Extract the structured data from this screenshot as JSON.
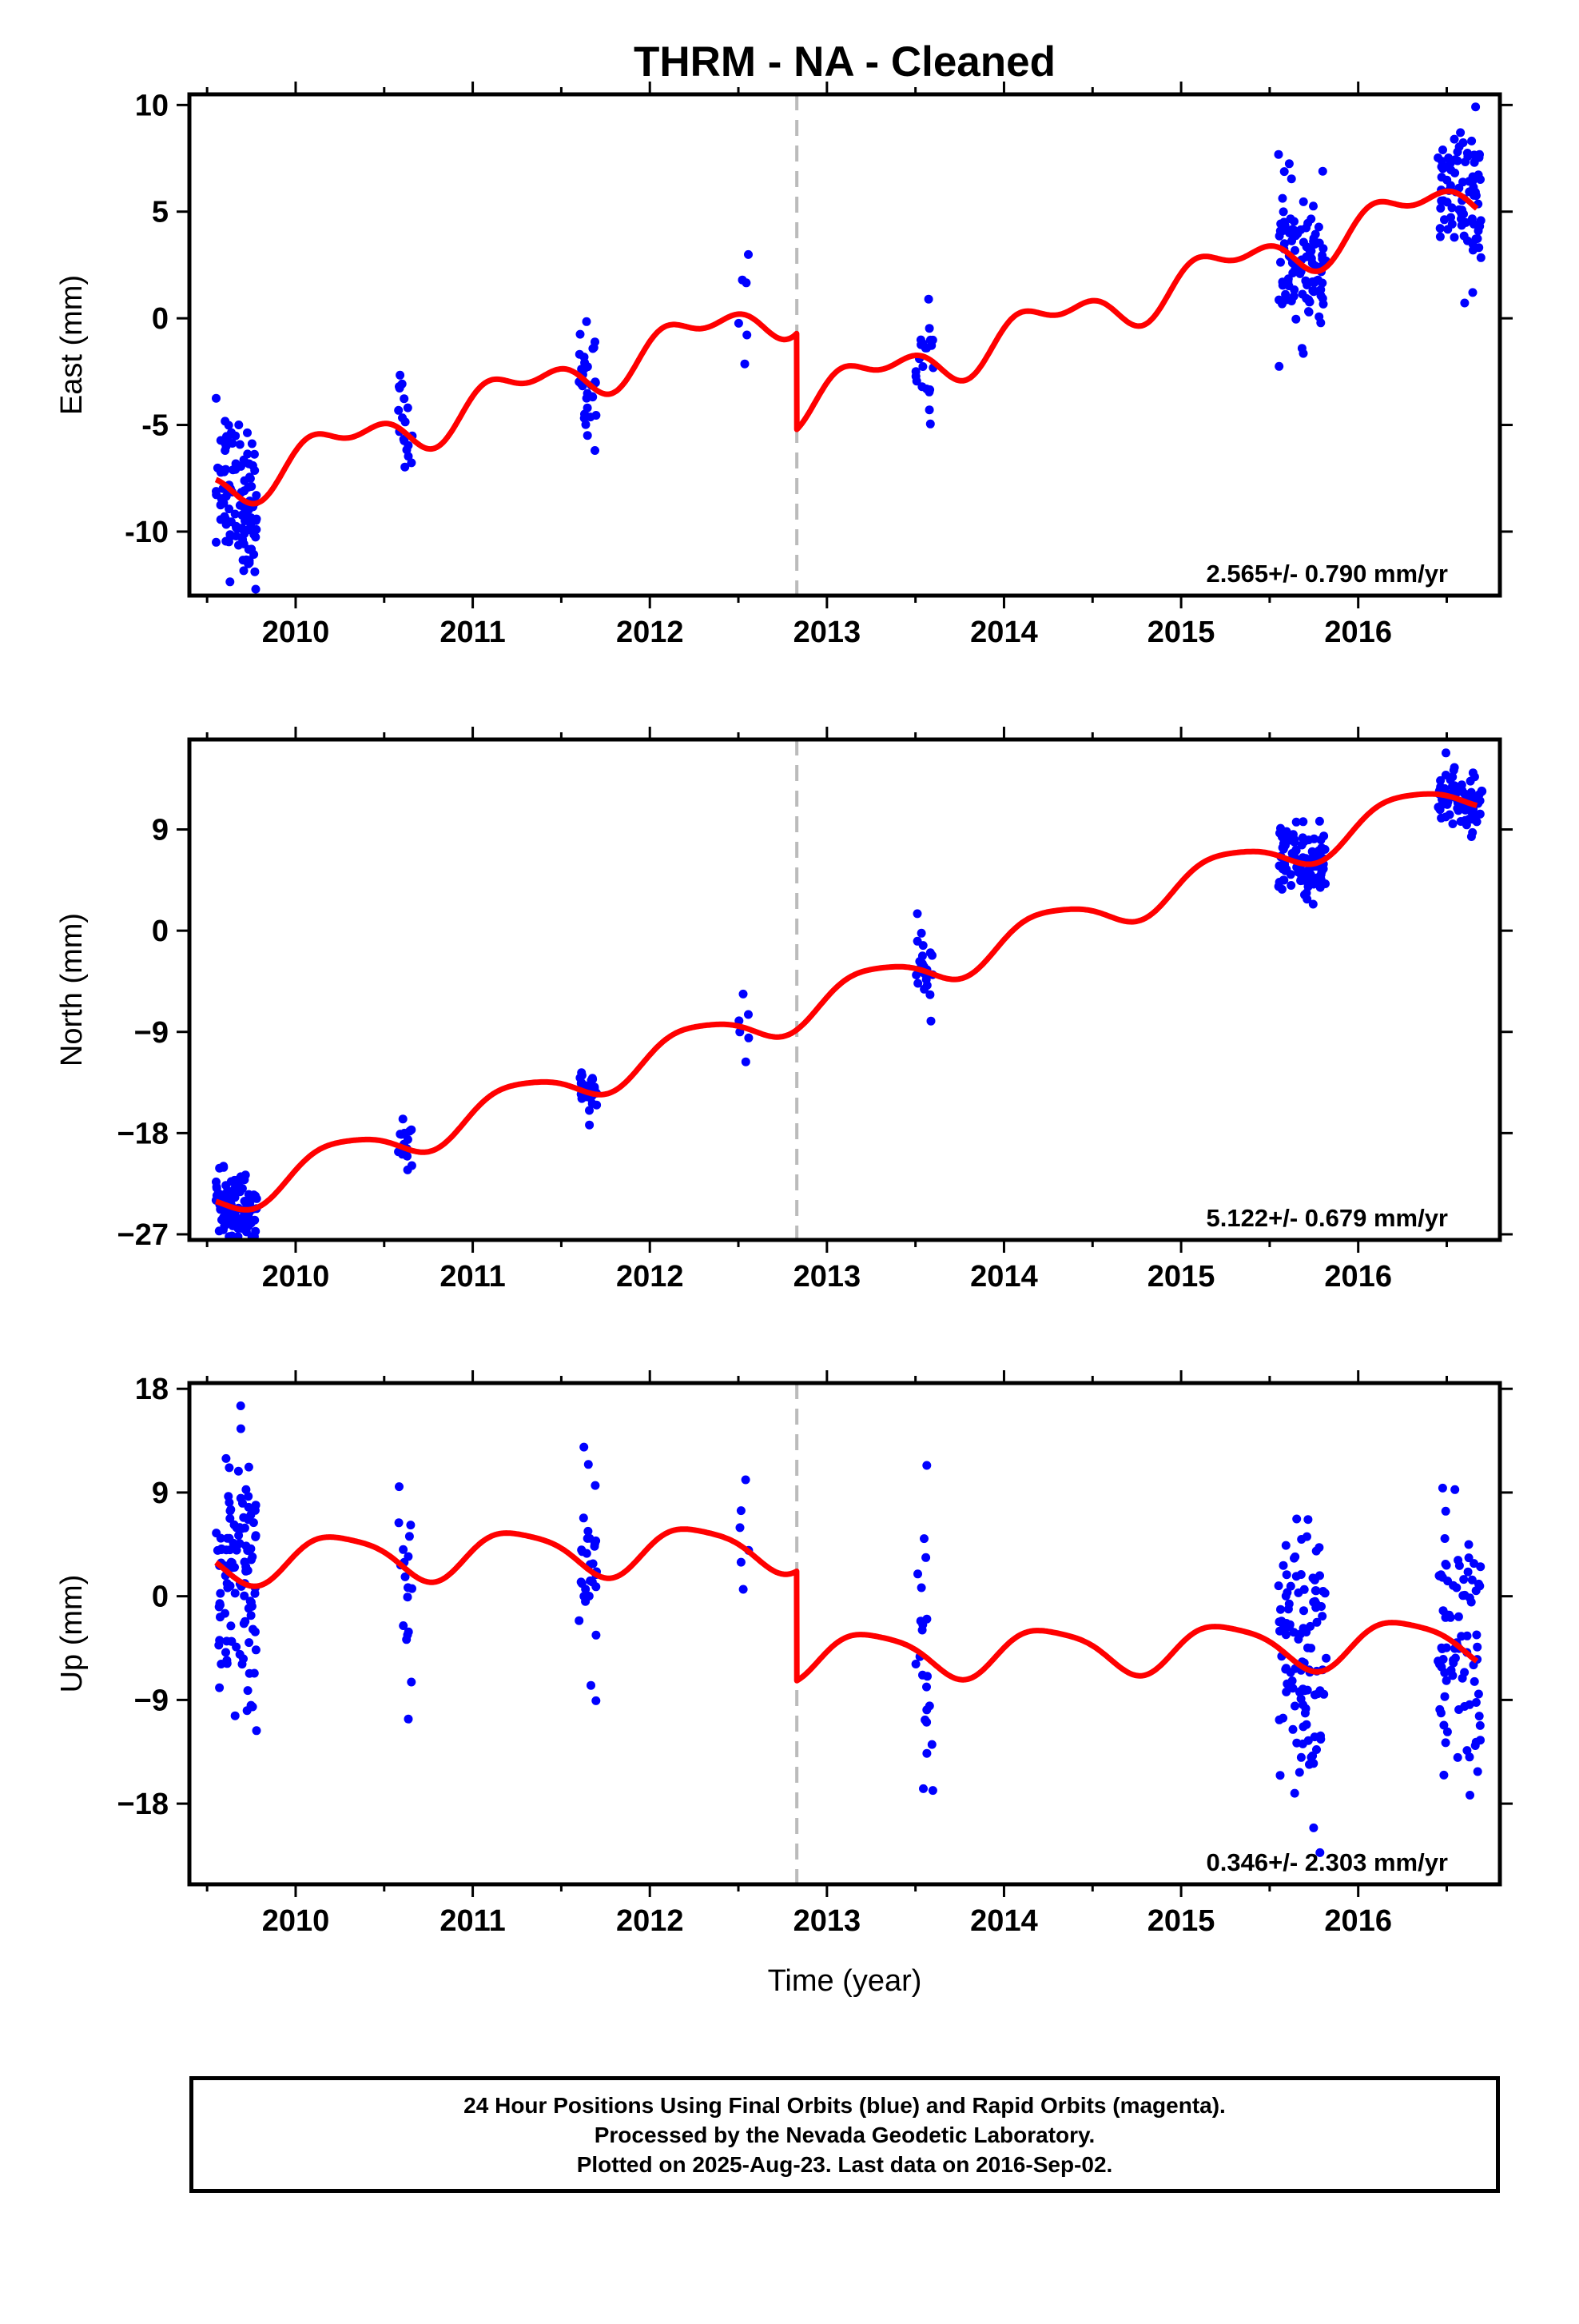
{
  "title": "THRM  - NA - Cleaned",
  "xlabel": "Time (year)",
  "footer": {
    "line1": "24 Hour Positions Using Final Orbits (blue) and Rapid Orbits (magenta).",
    "line2": "Processed by the Nevada Geodetic Laboratory.",
    "line3": "Plotted on 2025-Aug-23. Last data on 2016-Sep-02."
  },
  "colors": {
    "final_orbits": "#0000ff",
    "model_fit": "#ff0000",
    "equipment_change": "#bbbbbb"
  },
  "chart_data": [
    {
      "type": "scatter",
      "component": "east",
      "ylabel": "East (mm)",
      "ylim": [
        -13,
        10.5
      ],
      "xlim": [
        2009.4,
        2016.8
      ],
      "yticks": [
        -10,
        -5,
        0,
        5,
        10
      ],
      "xticks": [
        2010,
        2011,
        2012,
        2013,
        2014,
        2015,
        2016
      ],
      "xtick_labels": [
        "2010",
        "2011",
        "2012",
        "2013",
        "2014",
        "2015",
        "2016"
      ],
      "rate_label": "2.565+/- 0.790 mm/yr",
      "vline_x": 2012.83,
      "model": {
        "rate": 2.565,
        "intercept_at_2012": -1.55,
        "amplitude_annual": 0.9,
        "amplitude_semiannual": 0.55,
        "offset_after_break": -4.5
      },
      "series": [
        {
          "name": "Final Orbits",
          "clusters": [
            {
              "x_start": 2009.55,
              "x_end": 2009.78,
              "n": 110,
              "spread": 1.8
            },
            {
              "x_start": 2010.58,
              "x_end": 2010.66,
              "n": 18,
              "spread": 1.3
            },
            {
              "x_start": 2011.6,
              "x_end": 2011.7,
              "n": 30,
              "spread": 1.3
            },
            {
              "x_start": 2012.5,
              "x_end": 2012.56,
              "n": 6,
              "spread": 1.5
            },
            {
              "x_start": 2013.5,
              "x_end": 2013.6,
              "n": 22,
              "spread": 1.3
            },
            {
              "x_start": 2015.55,
              "x_end": 2015.82,
              "n": 110,
              "spread": 1.6
            },
            {
              "x_start": 2016.45,
              "x_end": 2016.7,
              "n": 85,
              "spread": 1.7
            }
          ]
        }
      ]
    },
    {
      "type": "scatter",
      "component": "north",
      "ylabel": "North (mm)",
      "ylim": [
        -27.5,
        17
      ],
      "xlim": [
        2009.4,
        2016.8
      ],
      "yticks": [
        -27,
        -18,
        -9,
        0,
        9
      ],
      "ytick_labels": [
        "−27",
        "−18",
        "−9",
        "0",
        "9"
      ],
      "xticks": [
        2010,
        2011,
        2012,
        2013,
        2014,
        2015,
        2016
      ],
      "xtick_labels": [
        "2010",
        "2011",
        "2012",
        "2013",
        "2014",
        "2015",
        "2016"
      ],
      "rate_label": "5.122+/- 0.679 mm/yr",
      "vline_x": 2012.83,
      "model": {
        "rate": 5.122,
        "intercept_at_2012": -11.3,
        "amplitude_annual": 1.7,
        "amplitude_semiannual": 0.3,
        "offset_after_break": 0
      },
      "series": [
        {
          "name": "Final Orbits",
          "clusters": [
            {
              "x_start": 2009.55,
              "x_end": 2009.78,
              "n": 110,
              "spread": 1.4
            },
            {
              "x_start": 2010.58,
              "x_end": 2010.66,
              "n": 18,
              "spread": 1.2
            },
            {
              "x_start": 2011.6,
              "x_end": 2011.7,
              "n": 30,
              "spread": 1.0
            },
            {
              "x_start": 2012.5,
              "x_end": 2012.56,
              "n": 6,
              "spread": 2.0
            },
            {
              "x_start": 2013.5,
              "x_end": 2013.6,
              "n": 22,
              "spread": 1.6
            },
            {
              "x_start": 2015.55,
              "x_end": 2015.82,
              "n": 110,
              "spread": 1.5
            },
            {
              "x_start": 2016.45,
              "x_end": 2016.7,
              "n": 85,
              "spread": 1.2
            }
          ]
        }
      ]
    },
    {
      "type": "scatter",
      "component": "up",
      "ylabel": "Up (mm)",
      "ylim": [
        -25,
        18.5
      ],
      "xlim": [
        2009.4,
        2016.8
      ],
      "yticks": [
        -18,
        -9,
        0,
        9,
        18
      ],
      "ytick_labels": [
        "−18",
        "−9",
        "0",
        "9",
        "18"
      ],
      "xticks": [
        2010,
        2011,
        2012,
        2013,
        2014,
        2015,
        2016
      ],
      "xtick_labels": [
        "2010",
        "2011",
        "2012",
        "2013",
        "2014",
        "2015",
        "2016"
      ],
      "rate_label": "0.346+/- 2.303 mm/yr",
      "vline_x": 2012.83,
      "model": {
        "rate": 0.346,
        "intercept_at_2012": 4.0,
        "amplitude_annual": 2.0,
        "amplitude_semiannual": 0.4,
        "offset_after_break": -9.5
      },
      "series": [
        {
          "name": "Final Orbits",
          "clusters": [
            {
              "x_start": 2009.55,
              "x_end": 2009.78,
              "n": 110,
              "spread": 6.0
            },
            {
              "x_start": 2010.58,
              "x_end": 2010.66,
              "n": 18,
              "spread": 4.5
            },
            {
              "x_start": 2011.6,
              "x_end": 2011.7,
              "n": 30,
              "spread": 5.5
            },
            {
              "x_start": 2012.5,
              "x_end": 2012.56,
              "n": 6,
              "spread": 6.0
            },
            {
              "x_start": 2013.5,
              "x_end": 2013.6,
              "n": 22,
              "spread": 7.0
            },
            {
              "x_start": 2015.55,
              "x_end": 2015.82,
              "n": 110,
              "spread": 6.0
            },
            {
              "x_start": 2016.45,
              "x_end": 2016.7,
              "n": 85,
              "spread": 6.0
            }
          ]
        }
      ]
    }
  ]
}
